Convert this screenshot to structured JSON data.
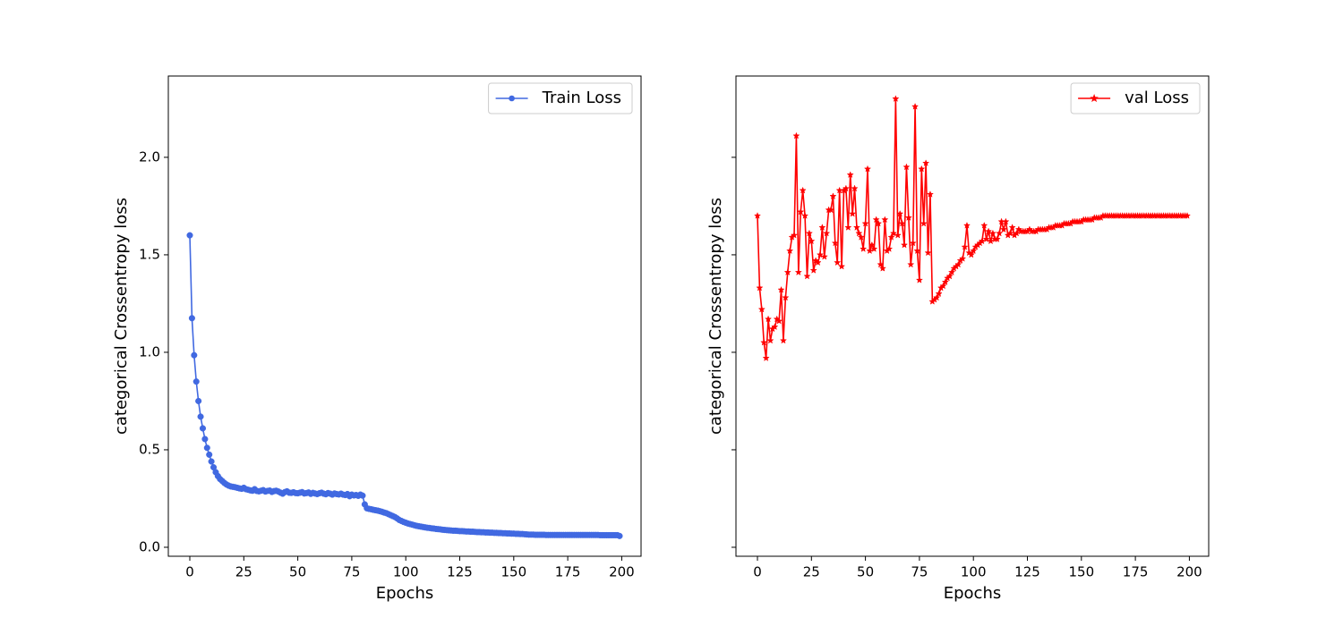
{
  "chart_data": [
    {
      "type": "line",
      "xlabel": "Epochs",
      "ylabel": "categorical Crossentropy loss",
      "x": [
        0,
        1,
        2,
        3,
        4,
        5,
        6,
        7,
        8,
        9,
        10,
        11,
        12,
        13,
        14,
        15,
        16,
        17,
        18,
        19,
        20,
        21,
        22,
        23,
        24,
        25,
        26,
        27,
        28,
        29,
        30,
        31,
        32,
        33,
        34,
        35,
        36,
        37,
        38,
        39,
        40,
        41,
        42,
        43,
        44,
        45,
        46,
        47,
        48,
        49,
        50,
        51,
        52,
        53,
        54,
        55,
        56,
        57,
        58,
        59,
        60,
        61,
        62,
        63,
        64,
        65,
        66,
        67,
        68,
        69,
        70,
        71,
        72,
        73,
        74,
        75,
        76,
        77,
        78,
        79,
        80,
        81,
        82,
        83,
        84,
        85,
        86,
        87,
        88,
        89,
        90,
        91,
        92,
        93,
        94,
        95,
        96,
        97,
        98,
        99,
        100,
        101,
        102,
        103,
        104,
        105,
        106,
        107,
        108,
        109,
        110,
        111,
        112,
        113,
        114,
        115,
        116,
        117,
        118,
        119,
        120,
        121,
        122,
        123,
        124,
        125,
        126,
        127,
        128,
        129,
        130,
        131,
        132,
        133,
        134,
        135,
        136,
        137,
        138,
        139,
        140,
        141,
        142,
        143,
        144,
        145,
        146,
        147,
        148,
        149,
        150,
        151,
        152,
        153,
        154,
        155,
        156,
        157,
        158,
        159,
        160,
        161,
        162,
        163,
        164,
        165,
        166,
        167,
        168,
        169,
        170,
        171,
        172,
        173,
        174,
        175,
        176,
        177,
        178,
        179,
        180,
        181,
        182,
        183,
        184,
        185,
        186,
        187,
        188,
        189,
        190,
        191,
        192,
        193,
        194,
        195,
        196,
        197,
        198,
        199
      ],
      "series": [
        {
          "name": "Train Loss",
          "color": "#4169e1",
          "marker": "circle",
          "values": [
            1.6,
            1.175,
            0.985,
            0.85,
            0.75,
            0.67,
            0.61,
            0.555,
            0.51,
            0.475,
            0.44,
            0.41,
            0.385,
            0.365,
            0.35,
            0.34,
            0.33,
            0.322,
            0.316,
            0.312,
            0.31,
            0.308,
            0.305,
            0.302,
            0.3,
            0.305,
            0.298,
            0.295,
            0.292,
            0.29,
            0.298,
            0.289,
            0.287,
            0.29,
            0.293,
            0.286,
            0.289,
            0.291,
            0.284,
            0.288,
            0.29,
            0.286,
            0.28,
            0.275,
            0.283,
            0.287,
            0.28,
            0.279,
            0.282,
            0.278,
            0.277,
            0.28,
            0.283,
            0.276,
            0.278,
            0.281,
            0.274,
            0.279,
            0.276,
            0.273,
            0.277,
            0.28,
            0.275,
            0.272,
            0.278,
            0.275,
            0.27,
            0.276,
            0.273,
            0.271,
            0.275,
            0.27,
            0.268,
            0.273,
            0.262,
            0.27,
            0.266,
            0.268,
            0.264,
            0.27,
            0.265,
            0.22,
            0.2,
            0.197,
            0.195,
            0.192,
            0.19,
            0.188,
            0.185,
            0.182,
            0.178,
            0.175,
            0.17,
            0.165,
            0.16,
            0.155,
            0.148,
            0.14,
            0.135,
            0.13,
            0.126,
            0.122,
            0.119,
            0.116,
            0.113,
            0.11,
            0.108,
            0.106,
            0.104,
            0.102,
            0.1,
            0.099,
            0.097,
            0.096,
            0.094,
            0.093,
            0.092,
            0.09,
            0.089,
            0.088,
            0.087,
            0.086,
            0.085,
            0.085,
            0.084,
            0.083,
            0.083,
            0.082,
            0.081,
            0.081,
            0.08,
            0.08,
            0.079,
            0.078,
            0.078,
            0.077,
            0.077,
            0.076,
            0.076,
            0.075,
            0.075,
            0.074,
            0.074,
            0.073,
            0.073,
            0.072,
            0.072,
            0.071,
            0.071,
            0.07,
            0.07,
            0.069,
            0.069,
            0.068,
            0.068,
            0.067,
            0.066,
            0.065,
            0.065,
            0.065,
            0.064,
            0.064,
            0.064,
            0.064,
            0.064,
            0.063,
            0.063,
            0.063,
            0.063,
            0.063,
            0.063,
            0.063,
            0.063,
            0.063,
            0.063,
            0.063,
            0.063,
            0.063,
            0.063,
            0.063,
            0.063,
            0.063,
            0.063,
            0.063,
            0.063,
            0.063,
            0.063,
            0.063,
            0.063,
            0.063,
            0.062,
            0.062,
            0.062,
            0.062,
            0.062,
            0.062,
            0.062,
            0.062,
            0.062,
            0.058
          ]
        }
      ],
      "xlim": [
        -9.95,
        208.95
      ],
      "ylim": [
        -0.046,
        2.417
      ],
      "xticks": [
        0,
        25,
        50,
        75,
        100,
        125,
        150,
        175,
        200
      ],
      "yticks": [
        {
          "value": 0,
          "label": "0.0"
        },
        0.5,
        {
          "value": 1,
          "label": "1.0"
        },
        1.5,
        {
          "value": 2,
          "label": "2.0"
        }
      ],
      "ytick_labels": true,
      "legend": "upper right"
    },
    {
      "type": "line",
      "xlabel": "Epochs",
      "ylabel": "categorical Crossentropy loss",
      "x": [
        0,
        1,
        2,
        3,
        4,
        5,
        6,
        7,
        8,
        9,
        10,
        11,
        12,
        13,
        14,
        15,
        16,
        17,
        18,
        19,
        20,
        21,
        22,
        23,
        24,
        25,
        26,
        27,
        28,
        29,
        30,
        31,
        32,
        33,
        34,
        35,
        36,
        37,
        38,
        39,
        40,
        41,
        42,
        43,
        44,
        45,
        46,
        47,
        48,
        49,
        50,
        51,
        52,
        53,
        54,
        55,
        56,
        57,
        58,
        59,
        60,
        61,
        62,
        63,
        64,
        65,
        66,
        67,
        68,
        69,
        70,
        71,
        72,
        73,
        74,
        75,
        76,
        77,
        78,
        79,
        80,
        81,
        82,
        83,
        84,
        85,
        86,
        87,
        88,
        89,
        90,
        91,
        92,
        93,
        94,
        95,
        96,
        97,
        98,
        99,
        100,
        101,
        102,
        103,
        104,
        105,
        106,
        107,
        108,
        109,
        110,
        111,
        112,
        113,
        114,
        115,
        116,
        117,
        118,
        119,
        120,
        121,
        122,
        123,
        124,
        125,
        126,
        127,
        128,
        129,
        130,
        131,
        132,
        133,
        134,
        135,
        136,
        137,
        138,
        139,
        140,
        141,
        142,
        143,
        144,
        145,
        146,
        147,
        148,
        149,
        150,
        151,
        152,
        153,
        154,
        155,
        156,
        157,
        158,
        159,
        160,
        161,
        162,
        163,
        164,
        165,
        166,
        167,
        168,
        169,
        170,
        171,
        172,
        173,
        174,
        175,
        176,
        177,
        178,
        179,
        180,
        181,
        182,
        183,
        184,
        185,
        186,
        187,
        188,
        189,
        190,
        191,
        192,
        193,
        194,
        195,
        196,
        197,
        198,
        199
      ],
      "series": [
        {
          "name": "val Loss",
          "color": "#ff0000",
          "marker": "star",
          "values": [
            1.7,
            1.33,
            1.22,
            1.05,
            0.97,
            1.17,
            1.06,
            1.12,
            1.13,
            1.17,
            1.16,
            1.32,
            1.06,
            1.28,
            1.41,
            1.52,
            1.59,
            1.6,
            2.11,
            1.41,
            1.72,
            1.83,
            1.7,
            1.39,
            1.61,
            1.57,
            1.42,
            1.47,
            1.46,
            1.5,
            1.64,
            1.49,
            1.61,
            1.73,
            1.73,
            1.8,
            1.56,
            1.46,
            1.83,
            1.44,
            1.83,
            1.84,
            1.64,
            1.91,
            1.71,
            1.84,
            1.64,
            1.61,
            1.59,
            1.53,
            1.66,
            1.94,
            1.52,
            1.55,
            1.53,
            1.68,
            1.66,
            1.45,
            1.43,
            1.68,
            1.52,
            1.53,
            1.59,
            1.61,
            2.3,
            1.6,
            1.71,
            1.66,
            1.55,
            1.95,
            1.69,
            1.45,
            1.56,
            2.26,
            1.52,
            1.37,
            1.94,
            1.66,
            1.97,
            1.51,
            1.81,
            1.26,
            1.27,
            1.28,
            1.3,
            1.33,
            1.34,
            1.36,
            1.38,
            1.39,
            1.41,
            1.43,
            1.44,
            1.45,
            1.47,
            1.48,
            1.54,
            1.65,
            1.51,
            1.5,
            1.52,
            1.54,
            1.55,
            1.56,
            1.57,
            1.65,
            1.58,
            1.62,
            1.57,
            1.61,
            1.58,
            1.58,
            1.61,
            1.67,
            1.63,
            1.67,
            1.6,
            1.61,
            1.64,
            1.6,
            1.61,
            1.63,
            1.62,
            1.62,
            1.62,
            1.62,
            1.63,
            1.62,
            1.62,
            1.62,
            1.63,
            1.63,
            1.63,
            1.63,
            1.63,
            1.64,
            1.64,
            1.64,
            1.65,
            1.65,
            1.65,
            1.65,
            1.66,
            1.66,
            1.66,
            1.66,
            1.67,
            1.67,
            1.67,
            1.67,
            1.67,
            1.68,
            1.68,
            1.68,
            1.68,
            1.68,
            1.69,
            1.69,
            1.69,
            1.69,
            1.7,
            1.7,
            1.7,
            1.7,
            1.7,
            1.7,
            1.7,
            1.7,
            1.7,
            1.7,
            1.7,
            1.7,
            1.7,
            1.7,
            1.7,
            1.7,
            1.7,
            1.7,
            1.7,
            1.7,
            1.7,
            1.7,
            1.7,
            1.7,
            1.7,
            1.7,
            1.7,
            1.7,
            1.7,
            1.7,
            1.7,
            1.7,
            1.7,
            1.7,
            1.7,
            1.7,
            1.7,
            1.7,
            1.7,
            1.7
          ]
        }
      ],
      "xlim": [
        -9.95,
        208.95
      ],
      "ylim": [
        -0.046,
        2.417
      ],
      "xticks": [
        0,
        25,
        50,
        75,
        100,
        125,
        150,
        175,
        200
      ],
      "yticks": [
        0,
        0.5,
        1,
        1.5,
        2
      ],
      "ytick_labels": false,
      "legend": "upper right"
    }
  ]
}
